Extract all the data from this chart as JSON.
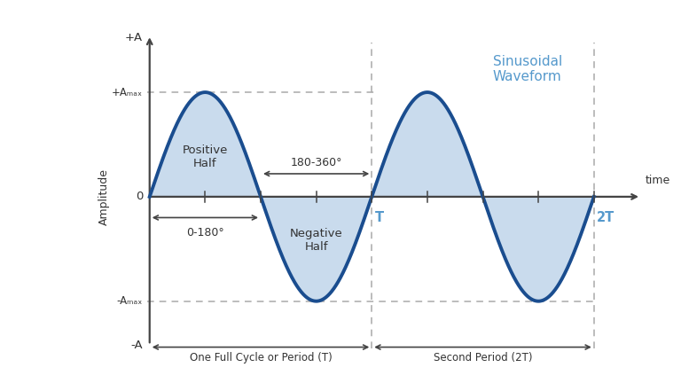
{
  "bg_color": "#ffffff",
  "wave_color": "#1a4d8f",
  "fill_color": "#b8cfe8",
  "fill_alpha": 0.75,
  "axis_color": "#444444",
  "dashed_color": "#aaaaaa",
  "text_color_dark": "#333333",
  "text_color_blue": "#5599cc",
  "period": 4.0,
  "sine_label": "Sinusoidal\nWaveform",
  "positive_half_label": "Positive\nHalf",
  "negative_half_label": "Negative\nHalf",
  "time_label": "time",
  "amplitude_label": "Amplitude",
  "zero_180_label": "0-180°",
  "one_eighty_360_label": "180-360°",
  "one_full_cycle_label": "One Full Cycle or Period (T)",
  "second_period_label": "Second Period (2T)",
  "plus_A_label": "+A",
  "plus_Amax_label": "+Aₘₐₓ",
  "minus_Amax_label": "-Aₘₐₓ",
  "minus_A_label": "-A",
  "zero_label": "0",
  "T_label": "T",
  "two_T_label": "2T"
}
